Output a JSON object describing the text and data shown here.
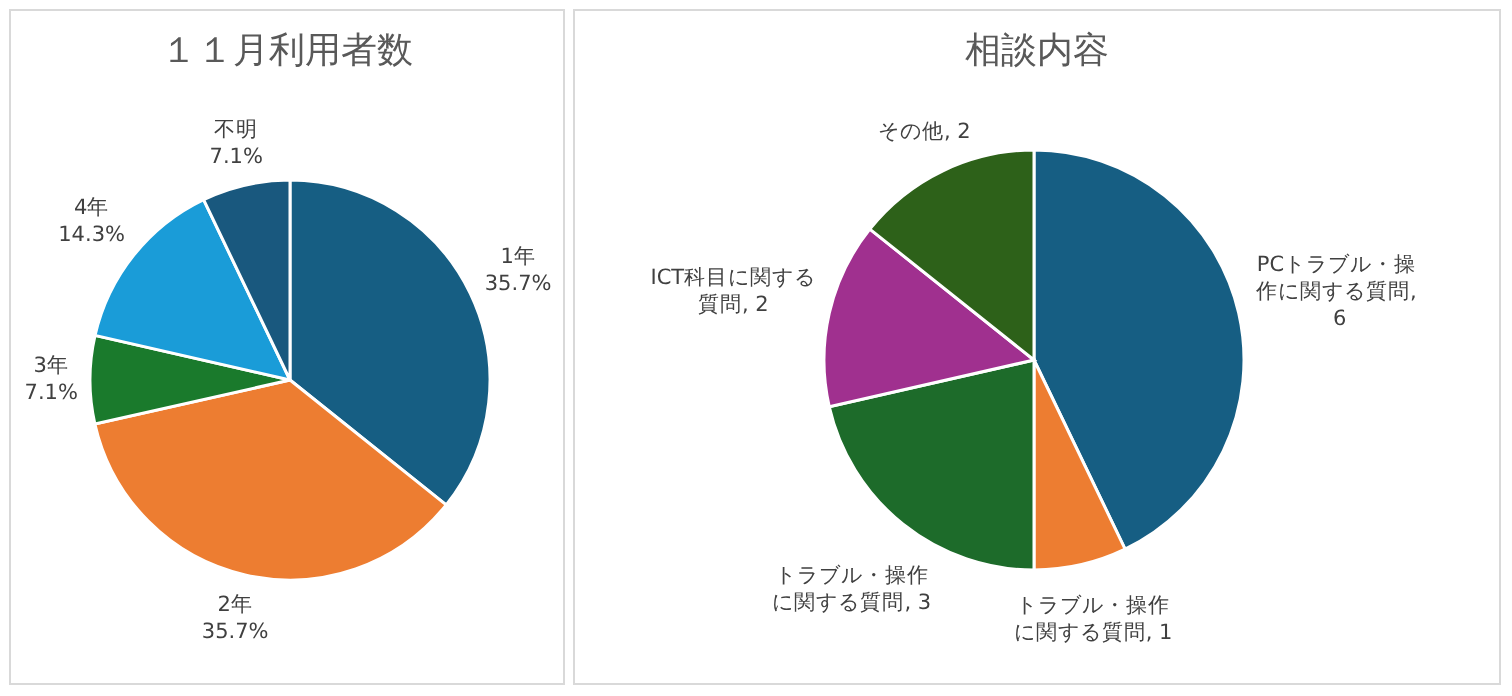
{
  "chart_data": [
    {
      "type": "pie",
      "title": "１１月利用者数",
      "categories": [
        "1年",
        "2年",
        "3年",
        "4年",
        "不明"
      ],
      "values": [
        35.7,
        35.7,
        7.1,
        14.3,
        7.1
      ],
      "value_labels": [
        "35.7%",
        "35.7%",
        "7.1%",
        "14.3%",
        "7.1%"
      ],
      "colors": [
        "#165e83",
        "#ed7d31",
        "#1a7a2c",
        "#1a9cd8",
        "#19587e"
      ],
      "legend": false
    },
    {
      "type": "pie",
      "title": "相談内容",
      "categories": [
        "PCトラブル・操作に関する質問",
        "トラブル・操作に関する質問",
        "トラブル・操作に関する質問",
        "ICT科目に関する質問",
        "その他"
      ],
      "values": [
        6,
        1,
        3,
        2,
        2
      ],
      "value_labels": [
        ", 6",
        ", 1",
        ", 3",
        ", 2",
        ", 2"
      ],
      "colors": [
        "#165e83",
        "#ed7d31",
        "#1d6b2a",
        "#a0308f",
        "#2d6119"
      ],
      "legend": false
    }
  ]
}
